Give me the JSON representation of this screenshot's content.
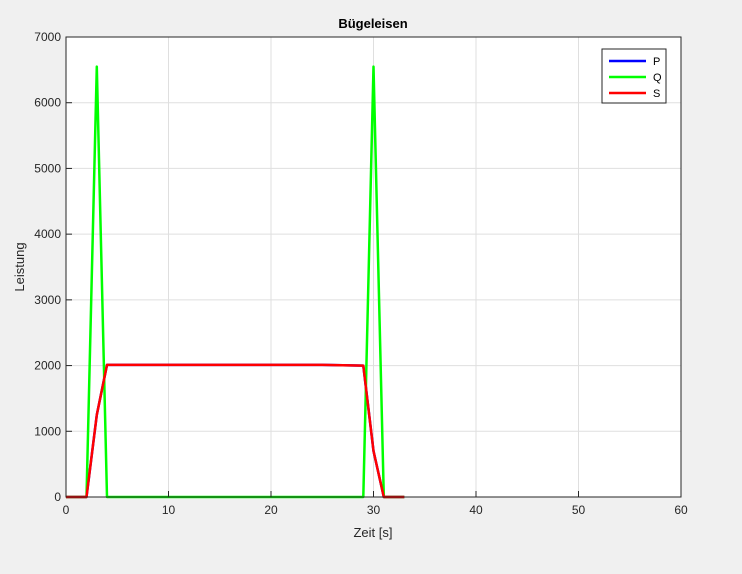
{
  "chart_data": {
    "type": "line",
    "title": "Bügeleisen",
    "xlabel": "Zeit [s]",
    "ylabel": "Leistung",
    "xlim": [
      0,
      60
    ],
    "ylim": [
      0,
      7000
    ],
    "xticks": [
      0,
      10,
      20,
      30,
      40,
      50,
      60
    ],
    "yticks": [
      0,
      1000,
      2000,
      3000,
      4000,
      5000,
      6000,
      7000
    ],
    "grid": true,
    "legend": "top-right",
    "series": [
      {
        "name": "P",
        "color": "#0000ff",
        "x": [
          0,
          2,
          3,
          4,
          5,
          10,
          15,
          20,
          25,
          29,
          30,
          31,
          32,
          33
        ],
        "y": [
          0,
          0,
          1250,
          2010,
          2010,
          2010,
          2010,
          2010,
          2010,
          2000,
          700,
          0,
          0,
          0
        ]
      },
      {
        "name": "Q",
        "color": "#00ff00",
        "x": [
          0,
          2,
          3,
          4,
          5,
          10,
          15,
          20,
          25,
          29,
          30,
          31,
          32,
          33
        ],
        "y": [
          0,
          0,
          6550,
          0,
          0,
          0,
          0,
          0,
          0,
          0,
          6550,
          0,
          0,
          0
        ]
      },
      {
        "name": "S",
        "color": "#ff0000",
        "x": [
          0,
          2,
          3,
          4,
          5,
          10,
          15,
          20,
          25,
          29,
          30,
          31,
          32,
          33
        ],
        "y": [
          0,
          0,
          1250,
          2010,
          2010,
          2010,
          2010,
          2010,
          2010,
          2000,
          700,
          0,
          0,
          0
        ]
      }
    ]
  }
}
